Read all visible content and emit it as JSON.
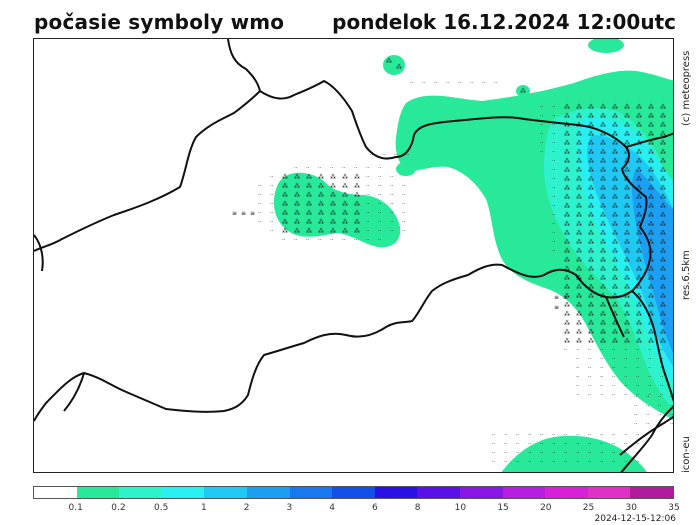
{
  "title": "počasie symboly wmo",
  "datetime": "pondelok 16.12.2024 12:00utc",
  "side_labels": {
    "copyright": "(c) meteopress",
    "resolution": "res.6.5km",
    "model": "icon-eu"
  },
  "legend": {
    "colors": [
      "#ffffff",
      "#28e89a",
      "#2ef2cc",
      "#29f0f0",
      "#20c8f4",
      "#1c9ff2",
      "#1878f0",
      "#1450e8",
      "#2810e6",
      "#5a10e6",
      "#8a16e6",
      "#b81ee2",
      "#d820d8",
      "#e030c8",
      "#b01c9c"
    ],
    "ticks": [
      "0.1",
      "0.2",
      "0.5",
      "1",
      "2",
      "3",
      "4",
      "6",
      "8",
      "10",
      "15",
      "20",
      "25",
      "30",
      "35"
    ]
  },
  "timestamp": "2024-12-15-12:06",
  "symbols": {
    "snow": "⁂",
    "drizzle": "ᐧᐧ",
    "fog": "≡"
  }
}
